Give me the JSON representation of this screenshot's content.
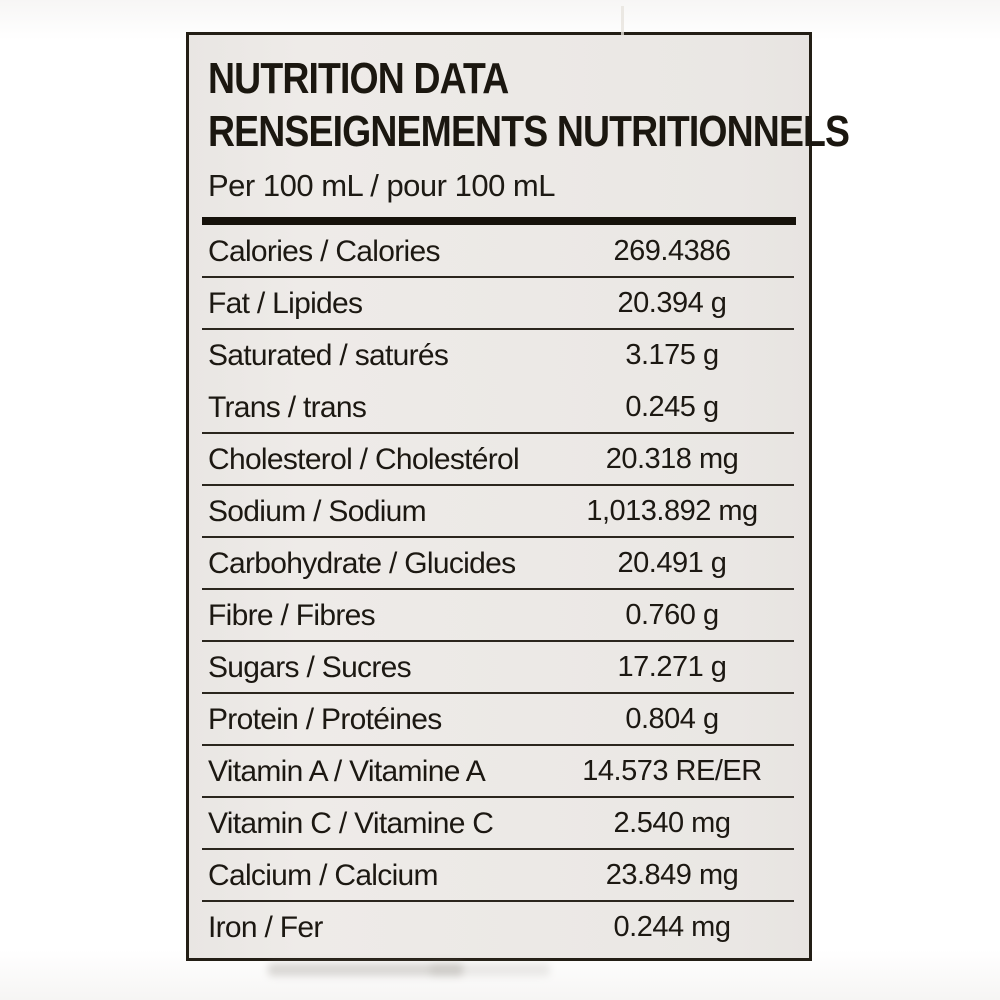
{
  "label": {
    "title_en": "NUTRITION DATA",
    "title_fr": "RENSEIGNEMENTS NUTRITIONNELS",
    "serving": "Per 100 mL / pour 100 mL",
    "rows": [
      {
        "lines": [
          {
            "label": "Calories / Calories",
            "value": "269.4386"
          }
        ]
      },
      {
        "lines": [
          {
            "label": "Fat / Lipides",
            "value": "20.394 g"
          }
        ]
      },
      {
        "lines": [
          {
            "label": "Saturated / saturés",
            "value": "3.175 g"
          },
          {
            "label": "Trans / trans",
            "value": "0.245 g"
          }
        ]
      },
      {
        "lines": [
          {
            "label": "Cholesterol / Cholestérol",
            "value": "20.318 mg"
          }
        ]
      },
      {
        "lines": [
          {
            "label": "Sodium / Sodium",
            "value": "1,013.892 mg"
          }
        ]
      },
      {
        "lines": [
          {
            "label": "Carbohydrate / Glucides",
            "value": "20.491 g"
          }
        ]
      },
      {
        "lines": [
          {
            "label": "Fibre / Fibres",
            "value": "0.760 g"
          }
        ]
      },
      {
        "lines": [
          {
            "label": "Sugars / Sucres",
            "value": "17.271 g"
          }
        ]
      },
      {
        "lines": [
          {
            "label": "Protein / Protéines",
            "value": "0.804 g"
          }
        ]
      },
      {
        "lines": [
          {
            "label": "Vitamin A / Vitamine A",
            "value": "14.573 RE/ER"
          }
        ]
      },
      {
        "lines": [
          {
            "label": "Vitamin C / Vitamine C",
            "value": "2.540 mg"
          }
        ]
      },
      {
        "lines": [
          {
            "label": "Calcium / Calcium",
            "value": "23.849 mg"
          }
        ]
      },
      {
        "lines": [
          {
            "label": "Iron / Fer",
            "value": "0.244 mg"
          }
        ]
      }
    ],
    "colors": {
      "label_background": "#ece9e6",
      "page_background": "#ffffff",
      "text": "#1c1812",
      "border": "#231e15",
      "divider": "#2b261e"
    }
  }
}
